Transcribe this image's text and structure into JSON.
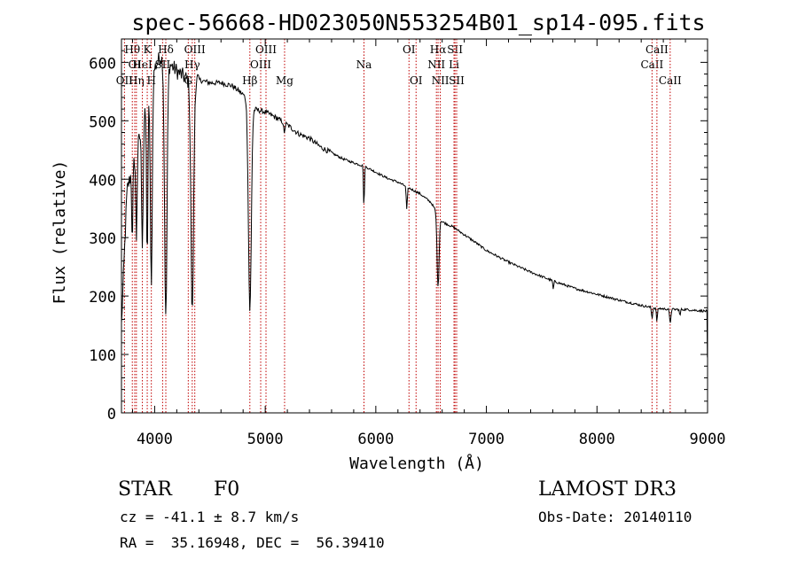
{
  "chart_data": {
    "type": "line",
    "title": "spec-56668-HD023050N553254B01_sp14-095.fits",
    "xlabel": "Wavelength (Å)",
    "ylabel": "Flux (relative)",
    "xlim": [
      3700,
      9000
    ],
    "ylim": [
      0,
      640
    ],
    "xticks": [
      4000,
      5000,
      6000,
      7000,
      8000,
      9000
    ],
    "xtick_labels": [
      "4000",
      "5000",
      "6000",
      "7000",
      "8000",
      "9000"
    ],
    "yticks": [
      0,
      100,
      200,
      300,
      400,
      500,
      600
    ],
    "ytick_labels": [
      "0",
      "100",
      "200",
      "300",
      "400",
      "500",
      "600"
    ],
    "grid": false,
    "series": [
      {
        "name": "flux",
        "continuum": {
          "x": [
            3700,
            3750,
            3800,
            3850,
            3900,
            3950,
            4000,
            4050,
            4100,
            4150,
            4200,
            4300,
            4400,
            4500,
            4600,
            4700,
            4800,
            4900,
            5000,
            5100,
            5200,
            5300,
            5400,
            5500,
            5600,
            5700,
            5800,
            5900,
            6000,
            6100,
            6200,
            6300,
            6400,
            6500,
            6600,
            6700,
            6800,
            6900,
            7000,
            7200,
            7400,
            7600,
            7800,
            8000,
            8200,
            8400,
            8500,
            8600,
            8700,
            8800,
            8990
          ],
          "y": [
            150,
            380,
            420,
            460,
            500,
            540,
            590,
            610,
            600,
            595,
            585,
            570,
            570,
            565,
            565,
            560,
            545,
            520,
            515,
            505,
            493,
            478,
            470,
            455,
            445,
            435,
            428,
            422,
            412,
            402,
            395,
            385,
            375,
            360,
            327,
            318,
            305,
            292,
            278,
            258,
            241,
            226,
            213,
            203,
            193,
            184,
            180,
            178,
            177,
            177,
            174
          ]
        },
        "absorption_lines": [
          {
            "center": 3798,
            "depth": 130,
            "width": 5
          },
          {
            "center": 3835,
            "depth": 150,
            "width": 6
          },
          {
            "center": 3889,
            "depth": 200,
            "width": 7
          },
          {
            "center": 3933,
            "depth": 260,
            "width": 6
          },
          {
            "center": 3970,
            "depth": 350,
            "width": 8
          },
          {
            "center": 4101,
            "depth": 440,
            "width": 11
          },
          {
            "center": 4340,
            "depth": 400,
            "width": 12
          },
          {
            "center": 4861,
            "depth": 355,
            "width": 13
          },
          {
            "center": 5172,
            "depth": 20,
            "width": 5
          },
          {
            "center": 5893,
            "depth": 75,
            "width": 4
          },
          {
            "center": 6280,
            "depth": 40,
            "width": 5
          },
          {
            "center": 6563,
            "depth": 125,
            "width": 9
          },
          {
            "center": 7605,
            "depth": 15,
            "width": 4
          },
          {
            "center": 8498,
            "depth": 18,
            "width": 5
          },
          {
            "center": 8542,
            "depth": 22,
            "width": 5
          },
          {
            "center": 8662,
            "depth": 24,
            "width": 6
          },
          {
            "center": 8750,
            "depth": 12,
            "width": 4
          }
        ]
      }
    ],
    "line_markers": [
      {
        "x": 3727,
        "label": "OII",
        "tier": 2
      },
      {
        "x": 3798,
        "label": "Hθ",
        "tier": 0
      },
      {
        "x": 3820,
        "label": "OI",
        "tier": 1
      },
      {
        "x": 3835,
        "label": "Hη",
        "tier": 2
      },
      {
        "x": 3889,
        "label": "HeI",
        "tier": 1
      },
      {
        "x": 3933,
        "label": "K",
        "tier": 0
      },
      {
        "x": 3970,
        "label": "H",
        "tier": 2
      },
      {
        "x": 4072,
        "label": "SII",
        "tier": 1
      },
      {
        "x": 4101,
        "label": "Hδ",
        "tier": 0
      },
      {
        "x": 4304,
        "label": "G",
        "tier": 2
      },
      {
        "x": 4340,
        "label": "Hγ",
        "tier": 1
      },
      {
        "x": 4363,
        "label": "OIII",
        "tier": 0
      },
      {
        "x": 4861,
        "label": "Hβ",
        "tier": 2
      },
      {
        "x": 4959,
        "label": "OIII",
        "tier": 1
      },
      {
        "x": 5007,
        "label": "OIII",
        "tier": 0
      },
      {
        "x": 5175,
        "label": "Mg",
        "tier": 2
      },
      {
        "x": 5893,
        "label": "Na",
        "tier": 1
      },
      {
        "x": 6300,
        "label": "OI",
        "tier": 0
      },
      {
        "x": 6364,
        "label": "OI",
        "tier": 2
      },
      {
        "x": 6548,
        "label": "NII",
        "tier": 1
      },
      {
        "x": 6563,
        "label": "Hα",
        "tier": 0
      },
      {
        "x": 6583,
        "label": "NII",
        "tier": 2
      },
      {
        "x": 6707,
        "label": "Li",
        "tier": 1
      },
      {
        "x": 6716,
        "label": "SII",
        "tier": 0
      },
      {
        "x": 6731,
        "label": "SII",
        "tier": 2
      },
      {
        "x": 8498,
        "label": "CaII",
        "tier": 1
      },
      {
        "x": 8542,
        "label": "CaII",
        "tier": 0
      },
      {
        "x": 8662,
        "label": "CaII",
        "tier": 2
      }
    ]
  },
  "info": {
    "object_class": "STAR",
    "subclass": "F0",
    "survey": "LAMOST DR3",
    "redshift": "cz = -41.1 ± 8.7 km/s",
    "obs_date": "Obs-Date: 20140110",
    "coords": "RA =  35.16948, DEC =  56.39410"
  }
}
